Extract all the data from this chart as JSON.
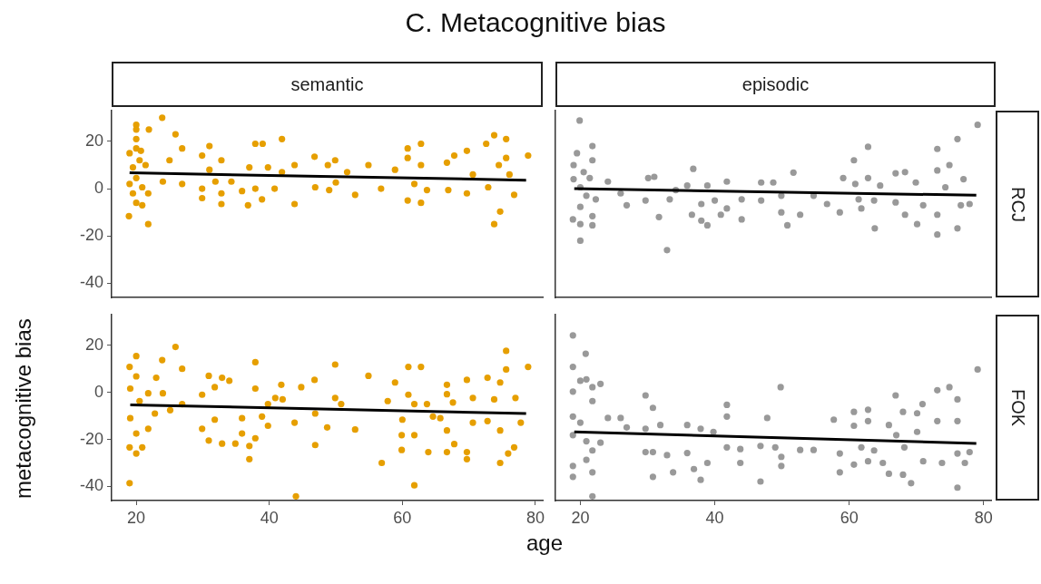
{
  "chart_data": [
    {
      "type": "scatter",
      "title": "C. Metacognitive bias",
      "subtitle": "semantic",
      "ylabel": "metacognitive bias",
      "xlim": [
        16.3,
        81.1
      ],
      "ylim": [
        -46,
        33
      ],
      "xticks": [
        20,
        40,
        60,
        80
      ],
      "yticks": [
        -40,
        -20,
        0,
        20
      ],
      "tick_labels": "y",
      "marker": "circle",
      "series": [
        {
          "color": "#e69f00",
          "x": [
            18.9,
            20,
            20,
            20,
            20,
            19,
            20.7,
            20.5,
            19.5,
            21.4,
            20,
            19,
            20.9,
            19.5,
            21.8,
            20,
            20.9,
            21.8,
            21.9,
            23.9,
            25,
            24,
            25.9,
            26.9,
            26.9,
            29.9,
            31,
            29.9,
            29.9,
            31,
            32.8,
            31.9,
            32.8,
            32.8,
            34.3,
            35.9,
            37,
            36.8,
            37.9,
            39,
            37.9,
            38.9,
            39.8,
            40.8,
            41.9,
            41.9,
            43.8,
            43.8,
            46.8,
            46.9,
            48.8,
            49.9,
            50,
            49,
            51.7,
            52.9,
            54.9,
            56.8,
            58.9,
            60.8,
            62.8,
            60.8,
            62.8,
            60.8,
            62.8,
            61.8,
            63.7,
            66.7,
            67.8,
            69.7,
            66.9,
            69.7,
            70.6,
            72.6,
            73.8,
            75.6,
            75.6,
            74.5,
            72.9,
            74.7,
            73.8,
            76.8,
            78.9,
            76.1
          ],
          "values": [
            -11.6,
            27,
            25,
            21,
            17,
            15,
            16,
            12,
            9,
            10,
            4.5,
            2,
            0.6,
            -2,
            -2,
            -6,
            -7,
            -15,
            25,
            30,
            12,
            3,
            23,
            17,
            2,
            14,
            18,
            0,
            -4,
            8,
            12,
            3,
            -2,
            -6.5,
            3,
            -1,
            9,
            -7,
            19,
            19,
            0,
            -4.5,
            9,
            0,
            21,
            7,
            10,
            -6.5,
            13.5,
            0.6,
            10,
            12,
            2.6,
            -0.6,
            7,
            -2.6,
            10,
            0,
            8,
            17,
            19,
            13,
            10,
            -5,
            -6,
            2,
            -0.6,
            11,
            14,
            16,
            -0.6,
            -2,
            6,
            19,
            22.6,
            21,
            13,
            10,
            0.6,
            -9.7,
            -15,
            -2.6,
            14,
            6
          ]
        },
        {
          "type": "line",
          "marker": "none",
          "color": "#000000",
          "x": [
            19,
            78.6
          ],
          "values": [
            6.7,
            3.6
          ]
        }
      ]
    },
    {
      "type": "scatter",
      "subtitle": "episodic",
      "y2label": "RCJ",
      "xlim": [
        16.3,
        81.1
      ],
      "ylim": [
        -46,
        33
      ],
      "xticks": [
        20,
        40,
        60,
        80
      ],
      "yticks": [
        -40,
        -20,
        0,
        20
      ],
      "tick_labels": false,
      "marker": "circle",
      "series": [
        {
          "color": "#999999",
          "x": [
            19.9,
            20,
            18.9,
            20,
            21.8,
            21.8,
            21.8,
            21.8,
            19.5,
            19,
            20.5,
            19,
            21.4,
            20,
            20.9,
            22.3,
            20,
            24.1,
            26.9,
            26,
            30.1,
            31,
            29.7,
            31.7,
            32.9,
            33.3,
            34.2,
            35.9,
            36.8,
            36.6,
            38,
            38.9,
            38,
            38.9,
            40,
            40.9,
            41.8,
            41.8,
            44,
            44,
            46.9,
            46.9,
            48.7,
            49.9,
            49.9,
            50.8,
            51.7,
            52.7,
            54.7,
            56.7,
            58.6,
            59.1,
            60.7,
            60.9,
            61.4,
            61.8,
            62.8,
            62.8,
            63.7,
            63.8,
            64.6,
            66.9,
            68.3,
            66.9,
            68.3,
            70.1,
            69.9,
            71,
            73.1,
            73.1,
            73.1,
            73.1,
            74.9,
            76.1,
            74.3,
            76.1,
            77,
            76.6,
            79.1,
            77.9
          ],
          "values": [
            28.8,
            -22,
            -13,
            -15,
            -15.5,
            -11.6,
            18,
            12,
            15,
            10,
            7,
            4,
            4.5,
            0.6,
            -3,
            -4.5,
            -7.7,
            3,
            -7,
            -2,
            4.5,
            5,
            -5,
            -12,
            -26,
            -4.5,
            -0.6,
            1.3,
            8.4,
            -11,
            -13.5,
            -15.5,
            -6.5,
            1.3,
            -5,
            -11,
            3,
            -8.4,
            -4.5,
            -13,
            2.6,
            -5,
            2.6,
            -3,
            -10,
            -15.5,
            6.8,
            -11,
            -3,
            -6.5,
            -10,
            4.5,
            12,
            2,
            -4.5,
            -8.4,
            17.7,
            4.5,
            -5,
            -16.8,
            1.3,
            6.5,
            7,
            -5.8,
            -11,
            -15,
            2.6,
            -7,
            16.8,
            7.7,
            -11,
            -19.4,
            10,
            21,
            0.6,
            -16.8,
            4,
            -7,
            27,
            -6.5
          ]
        },
        {
          "type": "line",
          "marker": "none",
          "color": "#000000",
          "x": [
            19.1,
            78.9
          ],
          "values": [
            0,
            -2.8
          ]
        }
      ]
    },
    {
      "type": "scatter",
      "xlabel": "age",
      "xlim": [
        16.3,
        81.1
      ],
      "ylim": [
        -46,
        33
      ],
      "xticks": [
        20,
        40,
        60,
        80
      ],
      "yticks": [
        -40,
        -20,
        0,
        20
      ],
      "marker": "circle",
      "series": [
        {
          "color": "#e69f00",
          "x": [
            19,
            19,
            19,
            20,
            20,
            19.1,
            20.5,
            19.1,
            20,
            20,
            20.9,
            21.8,
            21.8,
            22.8,
            23,
            23.9,
            24,
            25.1,
            25.9,
            26.9,
            26.9,
            29.9,
            29.9,
            30.9,
            30.9,
            31.8,
            31.8,
            32.9,
            32.9,
            34,
            34.9,
            35.9,
            35.9,
            37,
            37,
            37.9,
            37.9,
            37.9,
            38.9,
            39.8,
            39.8,
            40.9,
            41.8,
            42,
            43.8,
            44,
            44.8,
            46.8,
            46.9,
            46.9,
            48.7,
            49.9,
            49.9,
            50.8,
            52.9,
            54.9,
            56.9,
            58.9,
            57.8,
            59.9,
            59.9,
            60.9,
            62.8,
            60.9,
            61.8,
            61.8,
            61.8,
            60,
            63.7,
            63.9,
            64.6,
            65.7,
            66.7,
            66.7,
            66.7,
            66.7,
            67.8,
            67.6,
            69.7,
            69.7,
            69.7,
            70.6,
            70.6,
            72.8,
            72.8,
            73.8,
            74.7,
            74.7,
            74.7,
            75.6,
            75.6,
            75.9,
            76.8,
            77,
            77.8,
            78.9
          ],
          "values": [
            -38.6,
            -23.4,
            10.8,
            15.4,
            6.8,
            1.6,
            -3.7,
            -11,
            -17.5,
            -26,
            -23.4,
            -15.5,
            -0.4,
            -9,
            6.2,
            13.7,
            -0.4,
            -7.6,
            19.3,
            10,
            -5,
            -1,
            -15.5,
            7,
            -20.5,
            2.2,
            -11.6,
            6.2,
            -21.8,
            4.9,
            -21.8,
            -11,
            -17.5,
            -22.8,
            -28.4,
            12.8,
            1.6,
            -19.5,
            -10.3,
            -5,
            -14.2,
            -2.4,
            3.2,
            -3,
            -12.9,
            -44.2,
            2.2,
            5.3,
            -22.4,
            -9,
            -14.9,
            11.8,
            -2.4,
            -5,
            -15.8,
            7,
            -30,
            4.2,
            -3.7,
            -18.2,
            -24.5,
            10.8,
            10.8,
            -1,
            -5,
            -18.2,
            -39.5,
            -11.6,
            -5,
            -25.4,
            -10.3,
            -11,
            3.2,
            -0.8,
            -16.2,
            -25.4,
            -22,
            -4.3,
            5.3,
            -25.4,
            -28.4,
            -2.4,
            -12.9,
            6.2,
            -12.2,
            -3,
            4.2,
            -16.2,
            -30,
            17.6,
            9.7,
            -26,
            -23.4,
            -2.4,
            -12.9,
            10.8
          ]
        },
        {
          "type": "line",
          "marker": "none",
          "color": "#000000",
          "x": [
            19.1,
            78.6
          ],
          "values": [
            -5.3,
            -9
          ]
        }
      ]
    },
    {
      "type": "scatter",
      "y2label": "FOK",
      "xlim": [
        16.3,
        81.1
      ],
      "ylim": [
        -46,
        33
      ],
      "xticks": [
        20,
        40,
        60,
        80
      ],
      "yticks": [
        -40,
        -20,
        0,
        20
      ],
      "tick_labels": "x",
      "marker": "circle",
      "series": [
        {
          "color": "#999999",
          "x": [
            18.9,
            18.9,
            20.8,
            18.9,
            20,
            20.9,
            21.8,
            23,
            21.8,
            18.9,
            20,
            18.9,
            18.9,
            18.9,
            20.9,
            21.8,
            21.8,
            21.8,
            23,
            20.9,
            24.1,
            26,
            26.9,
            29.7,
            30.8,
            29.7,
            29.7,
            30.8,
            30.8,
            31.9,
            32.9,
            33.8,
            35.9,
            35.9,
            36.9,
            37.9,
            37.9,
            38.9,
            39.8,
            41.8,
            41.8,
            41.8,
            43.8,
            43.8,
            46.8,
            46.8,
            47.8,
            49,
            49.8,
            49.9,
            49.9,
            52.7,
            54.7,
            57.7,
            58.6,
            58.6,
            60.7,
            60.7,
            60.7,
            62.8,
            62.8,
            61.8,
            62.8,
            63.7,
            65,
            65.9,
            65.9,
            66.9,
            68,
            68,
            69.2,
            67,
            68.2,
            70.1,
            70.1,
            70.9,
            71,
            73.1,
            73.1,
            73.8,
            74.9,
            76.1,
            76.1,
            76.1,
            76.1,
            77.2,
            77.9,
            79.1
          ],
          "values": [
            24.2,
            10.8,
            16.4,
            0.3,
            4.9,
            5.5,
            2.2,
            3.6,
            -3.7,
            -10.3,
            -12.9,
            -18.2,
            -31.3,
            -35.9,
            -28.7,
            -34,
            -44.2,
            -24.7,
            -21.4,
            -20.8,
            -10.9,
            -10.9,
            -14.9,
            -1.3,
            -6.6,
            -15.5,
            -25.4,
            -35.9,
            -25.4,
            -13.9,
            -26.7,
            -34,
            -13.9,
            -25.8,
            -32.6,
            -15.5,
            -37.2,
            -30,
            -16.8,
            -5.3,
            -10.3,
            -23.4,
            -24.1,
            -30,
            -22.8,
            -37.9,
            -10.9,
            -23.4,
            2.2,
            -27.4,
            -31.3,
            -24.5,
            -24.5,
            -11.6,
            -26,
            -34,
            -8.3,
            -14.2,
            -30.7,
            -7.4,
            -12.2,
            -23.4,
            -29.3,
            -24.7,
            -30,
            -34.6,
            -13.9,
            -1.3,
            -8.3,
            -35,
            -38.6,
            -18.2,
            -23.4,
            -8.9,
            -16.8,
            -5,
            -29.3,
            0.9,
            -12.2,
            -30,
            2.2,
            -3,
            -12.2,
            -26,
            -40.5,
            -30,
            -25.4,
            9.7
          ]
        },
        {
          "type": "line",
          "marker": "none",
          "color": "#000000",
          "x": [
            19.1,
            78.9
          ],
          "values": [
            -16.8,
            -21.7
          ]
        }
      ]
    }
  ]
}
